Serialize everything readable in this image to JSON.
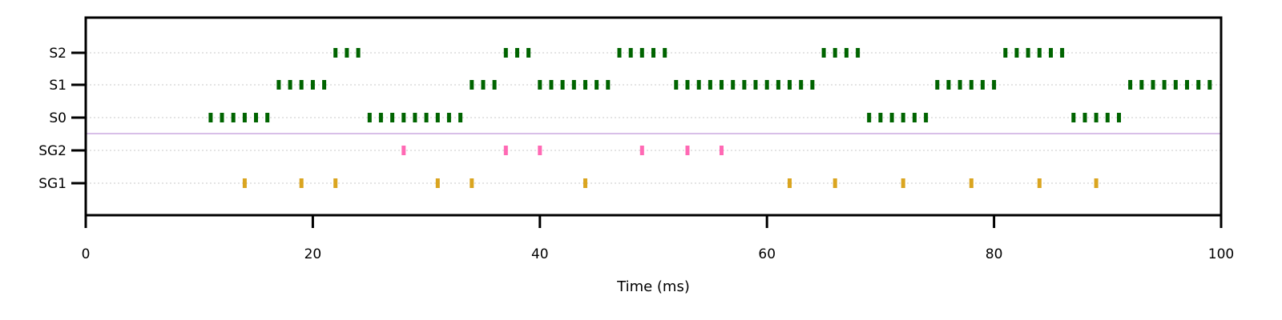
{
  "chart_data": {
    "type": "scatter",
    "title": "",
    "xlabel": "Time (ms)",
    "ylabel": "",
    "xlim": [
      0,
      100
    ],
    "x_ticks": [
      0,
      20,
      40,
      60,
      80,
      100
    ],
    "rows": [
      "SG1",
      "SG2",
      "S0",
      "S1",
      "S2"
    ],
    "separator_between": [
      "SG2",
      "S0"
    ],
    "grid": "horizontal dotted",
    "colors": {
      "S": "#006400",
      "SG1": "#DAA520",
      "SG2": "#FF69B4",
      "separator": "#B07FD0",
      "grid": "#C8C8C8"
    },
    "series": [
      {
        "name": "S2",
        "x": [
          22,
          23,
          24,
          37,
          38,
          39,
          47,
          48,
          49,
          50,
          51,
          65,
          66,
          67,
          68,
          81,
          82,
          83,
          84,
          85,
          86
        ]
      },
      {
        "name": "S1",
        "x": [
          17,
          18,
          19,
          20,
          21,
          34,
          35,
          36,
          40,
          41,
          42,
          43,
          44,
          45,
          46,
          52,
          53,
          54,
          55,
          56,
          57,
          58,
          59,
          60,
          61,
          62,
          63,
          64,
          75,
          76,
          77,
          78,
          79,
          80,
          92,
          93,
          94,
          95,
          96,
          97,
          98,
          99
        ]
      },
      {
        "name": "S0",
        "x": [
          11,
          12,
          13,
          14,
          15,
          16,
          25,
          26,
          27,
          28,
          29,
          30,
          31,
          32,
          33,
          69,
          70,
          71,
          72,
          73,
          74,
          87,
          88,
          89,
          90,
          91
        ]
      },
      {
        "name": "SG2",
        "x": [
          28,
          37,
          40,
          49,
          53,
          56
        ]
      },
      {
        "name": "SG1",
        "x": [
          14,
          19,
          22,
          31,
          34,
          44,
          62,
          66,
          72,
          78,
          84,
          89
        ]
      }
    ]
  }
}
